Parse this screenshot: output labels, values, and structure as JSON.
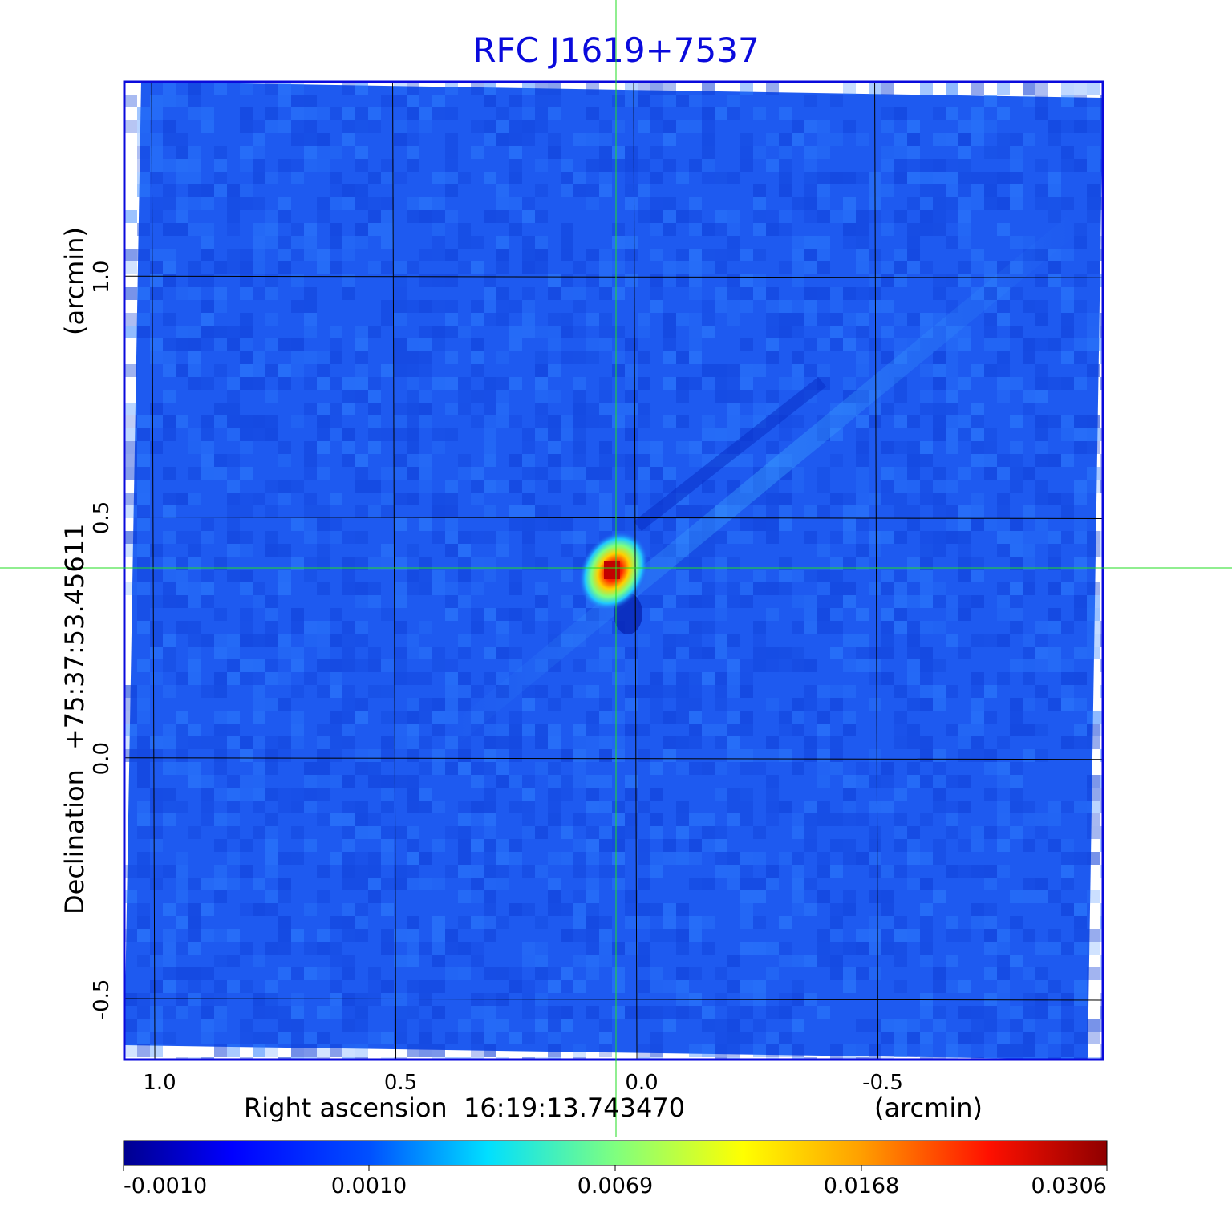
{
  "chart_data": {
    "type": "heatmap",
    "title": "RFC J1619+7537",
    "xlabel_prefix": "Right ascension",
    "xlabel_value": "16:19:13.743470",
    "xlabel_unit": "(arcmin)",
    "ylabel_prefix": "Declination",
    "ylabel_value": "+75:37:53.45611",
    "ylabel_unit": "(arcmin)",
    "x_ticks": [
      1.0,
      0.5,
      0.0,
      -0.5
    ],
    "x_tick_labels": [
      "1.0",
      "0.5",
      "0.0",
      "-0.5"
    ],
    "y_ticks": [
      1.0,
      0.5,
      0.0,
      -0.5
    ],
    "y_tick_labels": [
      "1.0",
      "0.5",
      "0.0",
      "-0.5"
    ],
    "xlim": [
      1.06,
      -0.97
    ],
    "ylim": [
      -0.625,
      1.405
    ],
    "crosshair": {
      "x": -0.04,
      "y": 0.39
    },
    "source": {
      "x": -0.04,
      "y": 0.385,
      "peak": 0.0306
    },
    "noise_level": 0.0,
    "grid": true,
    "colorbar": {
      "ticks": [
        -0.001,
        0.001,
        0.0069,
        0.0168,
        0.0306
      ],
      "tick_labels": [
        "-0.0010",
        "0.0010",
        "0.0069",
        "0.0168",
        "0.0306"
      ],
      "colormap": "jet"
    }
  },
  "colors": {
    "title": "#0a0adc",
    "frame": "#0a0adc",
    "crosshair": "#22dd22",
    "grid": "#000000",
    "background_field": "#1e5af0"
  }
}
